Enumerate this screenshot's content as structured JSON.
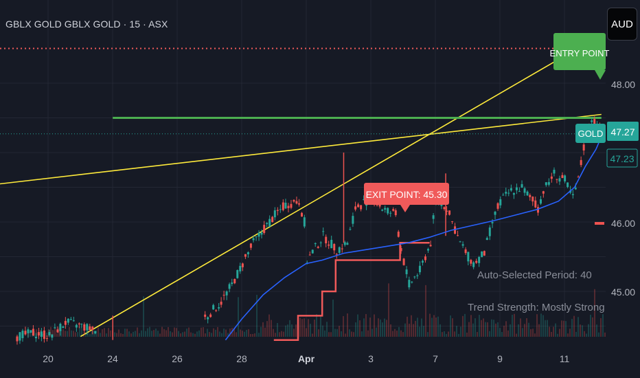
{
  "header": {
    "symbol_title": "GBLX GOLD GBLX GOLD · 15 · ASX",
    "currency_button": "AUD"
  },
  "colors": {
    "background": "#161a25",
    "grid": "#232734",
    "up": "#26a69a",
    "down": "#ef5350",
    "ma_line": "#2962ff",
    "trend_line": "#ffeb3b",
    "entry": "#4caf50",
    "exit_label": "#f05a5a",
    "step_line": "#f05a5a",
    "resistance_dots": "#f05a5a",
    "current_price_box": "#26a69a"
  },
  "chart_data": {
    "type": "candlestick",
    "x_tick_labels": [
      "20",
      "24",
      "26",
      "28",
      "Apr",
      "3",
      "7",
      "9",
      "11"
    ],
    "y_tick_labels": [
      "48.00",
      "46.00",
      "45.00"
    ],
    "ylim": [
      44.3,
      48.6
    ],
    "current_price": {
      "value": 47.27,
      "label": "47.27"
    },
    "ma_value": {
      "value": 47.23,
      "label": "47.23"
    },
    "instrument_tag": "GOLD",
    "entry_label": "ENTRY POINT",
    "exit_label": "EXIT POINT: 45.30",
    "entry_level": 47.5,
    "resistance_level": 48.5,
    "annotations": {
      "period_text": "Auto-Selected Period: 40",
      "trend_text": "Trend Strength: Mostly Strong"
    },
    "price_path": [
      [
        0.03,
        44.35
      ],
      [
        0.06,
        44.4
      ],
      [
        0.09,
        44.36
      ],
      [
        0.12,
        44.55
      ],
      [
        0.15,
        44.5
      ],
      [
        0.18,
        44.42
      ],
      [
        0.38,
        44.62
      ],
      [
        0.41,
        44.85
      ],
      [
        0.43,
        45.1
      ],
      [
        0.45,
        45.4
      ],
      [
        0.47,
        45.7
      ],
      [
        0.49,
        45.9
      ],
      [
        0.51,
        46.1
      ],
      [
        0.53,
        46.25
      ],
      [
        0.555,
        46.3
      ],
      [
        0.565,
        46.0
      ],
      [
        0.57,
        45.45
      ],
      [
        0.6,
        45.8
      ],
      [
        0.625,
        45.6
      ],
      [
        0.645,
        45.7
      ],
      [
        0.66,
        46.2
      ],
      [
        0.69,
        46.35
      ],
      [
        0.71,
        46.2
      ],
      [
        0.735,
        46.1
      ],
      [
        0.745,
        45.6
      ],
      [
        0.76,
        45.1
      ],
      [
        0.78,
        45.3
      ],
      [
        0.8,
        45.7
      ],
      [
        0.81,
        46.35
      ],
      [
        0.83,
        46.2
      ],
      [
        0.855,
        45.7
      ],
      [
        0.87,
        45.5
      ],
      [
        0.88,
        45.4
      ],
      [
        0.9,
        45.55
      ],
      [
        0.915,
        46.0
      ],
      [
        0.93,
        46.3
      ],
      [
        0.95,
        46.45
      ],
      [
        0.97,
        46.5
      ],
      [
        0.985,
        46.35
      ],
      [
        1.0,
        46.2
      ],
      [
        1.01,
        46.45
      ],
      [
        1.03,
        46.7
      ],
      [
        1.05,
        46.6
      ],
      [
        1.065,
        46.35
      ],
      [
        1.075,
        46.6
      ],
      [
        1.09,
        47.3
      ],
      [
        1.1,
        47.5
      ],
      [
        1.11,
        47.35
      ],
      [
        1.12,
        47.27
      ]
    ],
    "ma_path": [
      [
        0.42,
        44.3
      ],
      [
        0.45,
        44.6
      ],
      [
        0.49,
        44.95
      ],
      [
        0.53,
        45.2
      ],
      [
        0.57,
        45.4
      ],
      [
        0.6,
        45.45
      ],
      [
        0.64,
        45.55
      ],
      [
        0.68,
        45.6
      ],
      [
        0.72,
        45.65
      ],
      [
        0.76,
        45.7
      ],
      [
        0.8,
        45.78
      ],
      [
        0.84,
        45.88
      ],
      [
        0.88,
        45.95
      ],
      [
        0.92,
        46.02
      ],
      [
        0.96,
        46.1
      ],
      [
        1.0,
        46.18
      ],
      [
        1.04,
        46.3
      ],
      [
        1.07,
        46.5
      ],
      [
        1.09,
        46.8
      ],
      [
        1.11,
        47.05
      ],
      [
        1.12,
        47.23
      ]
    ],
    "step_path": [
      [
        0.51,
        44.3
      ],
      [
        0.555,
        44.3
      ],
      [
        0.555,
        44.65
      ],
      [
        0.6,
        44.65
      ],
      [
        0.6,
        45.0
      ],
      [
        0.625,
        45.0
      ],
      [
        0.625,
        45.45
      ],
      [
        0.745,
        45.45
      ],
      [
        0.745,
        45.7
      ],
      [
        0.8,
        45.7
      ]
    ],
    "entry_line": [
      [
        0.21,
        47.5
      ],
      [
        1.12,
        47.5
      ]
    ],
    "trend_lines": [
      [
        [
          0.0,
          46.55
        ],
        [
          1.12,
          47.55
        ]
      ],
      [
        [
          0.15,
          44.35
        ],
        [
          1.12,
          48.7
        ]
      ]
    ],
    "spikes": [
      {
        "x": 0.21,
        "high": 44.65,
        "low": 44.3
      },
      {
        "x": 0.64,
        "high": 47.0,
        "low": 45.7
      },
      {
        "x": 0.83,
        "high": 46.7,
        "low": 45.8
      }
    ]
  }
}
